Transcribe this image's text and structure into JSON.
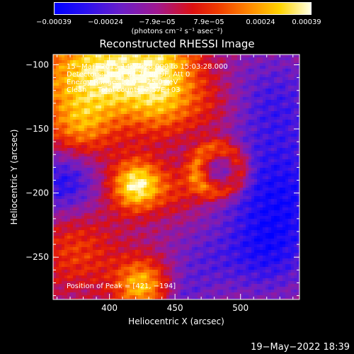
{
  "chart_data": {
    "type": "heatmap",
    "title": "Reconstructed RHESSI Image",
    "xlabel": "Heliocentric X (arcsec)",
    "ylabel": "Heliocentric Y (arcsec)",
    "xlim": [
      357,
      545
    ],
    "ylim": [
      -283,
      -92
    ],
    "x_ticks": [
      400,
      450,
      500
    ],
    "y_ticks": [
      -250,
      -200,
      -150,
      -100
    ],
    "x_tick_labels": [
      "400",
      "450",
      "500"
    ],
    "y_tick_labels": [
      "−250",
      "−200",
      "−150",
      "−100"
    ],
    "colorbar": {
      "min": -0.00039,
      "max": 0.00039,
      "tick_labels": [
        "−0.00039",
        "−0.00024",
        "−7.9e−05",
        "7.9e−05",
        "0.00024",
        "0.00039"
      ],
      "unit_label": "(photons cm⁻² s⁻¹ asec⁻²)"
    },
    "annotations": {
      "time_range": "15−Mar−2015 14:57:28.000 to 15:03:28.000",
      "detectors": "Detectors: 3F 5F 6F 7F 8F 9F, Att 0",
      "energy_range": "Energy Range: 12.0 − 25.0 keV",
      "algorithm": "Clean     Total counts: 7.57E+03",
      "peak": "Position of Peak = [421, −194]"
    },
    "peak_position": [
      421,
      -194
    ]
  },
  "timestamp": "19−May−2022 18:39"
}
